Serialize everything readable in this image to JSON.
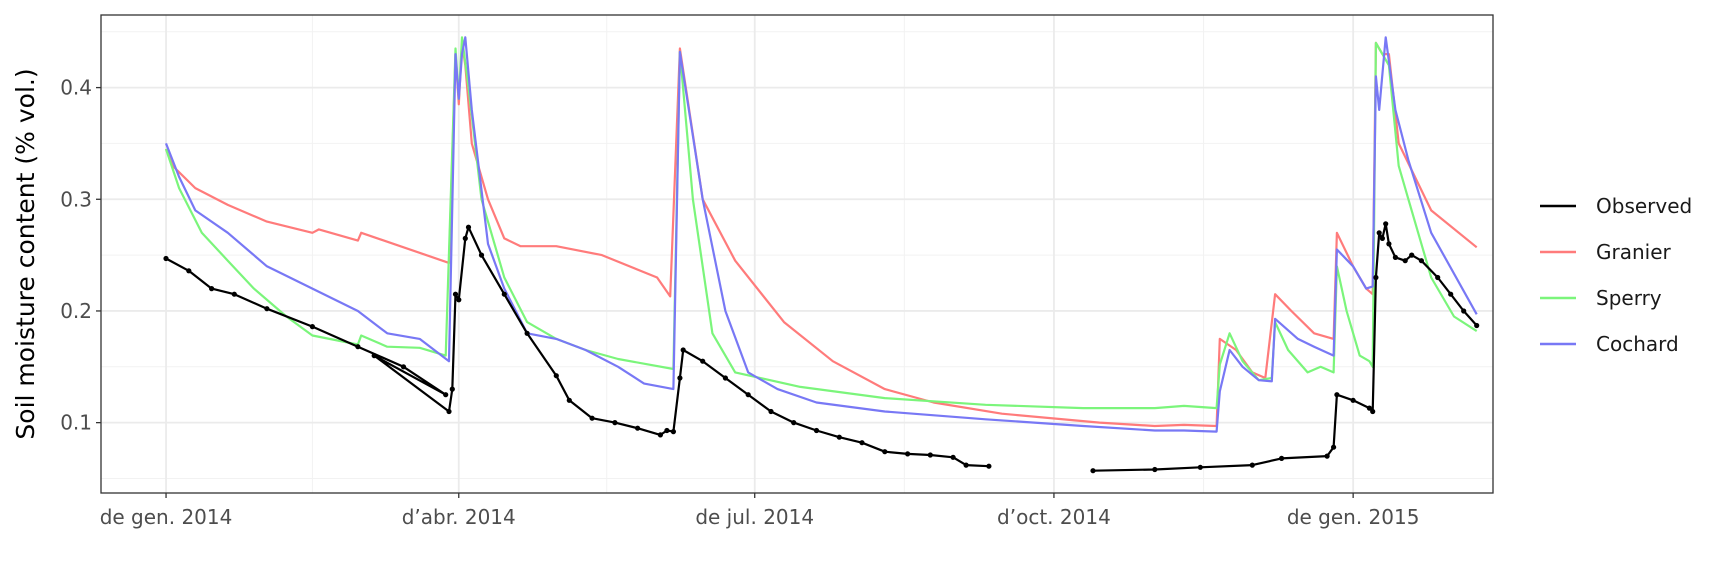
{
  "chart_data": {
    "type": "line",
    "title": "",
    "xlabel": "",
    "ylabel": "Soil moisture content (% vol.)",
    "x_ticks": [
      {
        "date": "2014-01-01",
        "label": "de gen. 2014"
      },
      {
        "date": "2014-04-01",
        "label": "d’abr. 2014"
      },
      {
        "date": "2014-07-01",
        "label": "de jul. 2014"
      },
      {
        "date": "2014-10-01",
        "label": "d’oct. 2014"
      },
      {
        "date": "2015-01-01",
        "label": "de gen. 2015"
      }
    ],
    "y_ticks": [
      {
        "value": 0.1,
        "label": "0.1"
      },
      {
        "value": 0.2,
        "label": "0.2"
      },
      {
        "value": 0.3,
        "label": "0.3"
      },
      {
        "value": 0.4,
        "label": "0.4"
      }
    ],
    "xlim": [
      "2013-12-12",
      "2015-02-13"
    ],
    "ylim": [
      0.037,
      0.465
    ],
    "grid": true,
    "legend_position": "right",
    "series": [
      {
        "name": "Observed",
        "color": "#000000",
        "markers": true,
        "segments": [
          [
            [
              "2014-01-01",
              0.247
            ],
            [
              "2014-01-08",
              0.236
            ],
            [
              "2014-01-15",
              0.22
            ],
            [
              "2014-01-22",
              0.215
            ],
            [
              "2014-02-01",
              0.202
            ],
            [
              "2014-02-15",
              0.186
            ],
            [
              "2014-03-01",
              0.168
            ],
            [
              "2014-03-15",
              0.15
            ],
            [
              "2014-03-28",
              0.125
            ],
            [
              "2014-03-06",
              0.16
            ],
            [
              "2014-03-29",
              0.11
            ],
            [
              "2014-03-30",
              0.13
            ],
            [
              "2014-03-31",
              0.215
            ],
            [
              "2014-04-01",
              0.21
            ],
            [
              "2014-04-03",
              0.265
            ],
            [
              "2014-04-04",
              0.275
            ],
            [
              "2014-04-08",
              0.25
            ],
            [
              "2014-04-15",
              0.215
            ],
            [
              "2014-04-22",
              0.18
            ],
            [
              "2014-05-01",
              0.142
            ],
            [
              "2014-05-05",
              0.12
            ],
            [
              "2014-05-12",
              0.104
            ],
            [
              "2014-05-19",
              0.1
            ],
            [
              "2014-05-26",
              0.095
            ],
            [
              "2014-06-02",
              0.089
            ],
            [
              "2014-06-04",
              0.093
            ],
            [
              "2014-06-06",
              0.092
            ],
            [
              "2014-06-08",
              0.14
            ],
            [
              "2014-06-09",
              0.165
            ],
            [
              "2014-06-15",
              0.155
            ],
            [
              "2014-06-22",
              0.14
            ],
            [
              "2014-06-29",
              0.125
            ],
            [
              "2014-07-06",
              0.11
            ],
            [
              "2014-07-13",
              0.1
            ],
            [
              "2014-07-20",
              0.093
            ],
            [
              "2014-07-27",
              0.087
            ],
            [
              "2014-08-03",
              0.082
            ],
            [
              "2014-08-10",
              0.074
            ],
            [
              "2014-08-17",
              0.072
            ],
            [
              "2014-08-24",
              0.071
            ],
            [
              "2014-08-31",
              0.069
            ],
            [
              "2014-09-04",
              0.062
            ],
            [
              "2014-09-11",
              0.061
            ]
          ],
          [
            [
              "2014-10-13",
              0.057
            ],
            [
              "2014-11-01",
              0.058
            ],
            [
              "2014-11-15",
              0.06
            ],
            [
              "2014-12-01",
              0.062
            ],
            [
              "2014-12-10",
              0.068
            ],
            [
              "2014-12-24",
              0.07
            ],
            [
              "2014-12-26",
              0.078
            ],
            [
              "2014-12-27",
              0.125
            ],
            [
              "2015-01-01",
              0.12
            ],
            [
              "2015-01-06",
              0.113
            ],
            [
              "2015-01-07",
              0.11
            ],
            [
              "2015-01-08",
              0.23
            ],
            [
              "2015-01-09",
              0.27
            ],
            [
              "2015-01-10",
              0.265
            ],
            [
              "2015-01-11",
              0.278
            ],
            [
              "2015-01-12",
              0.26
            ],
            [
              "2015-01-14",
              0.248
            ],
            [
              "2015-01-17",
              0.245
            ],
            [
              "2015-01-19",
              0.25
            ],
            [
              "2015-01-22",
              0.245
            ],
            [
              "2015-01-27",
              0.23
            ],
            [
              "2015-01-31",
              0.215
            ],
            [
              "2015-02-04",
              0.2
            ],
            [
              "2015-02-08",
              0.187
            ]
          ]
        ]
      },
      {
        "name": "Granier",
        "color": "#ff7b7b",
        "segments": [
          [
            [
              "2014-01-01",
              0.345
            ],
            [
              "2014-01-03",
              0.33
            ],
            [
              "2014-01-10",
              0.31
            ],
            [
              "2014-01-20",
              0.295
            ],
            [
              "2014-02-01",
              0.28
            ],
            [
              "2014-02-15",
              0.27
            ],
            [
              "2014-02-17",
              0.273
            ],
            [
              "2014-03-01",
              0.263
            ],
            [
              "2014-03-02",
              0.27
            ],
            [
              "2014-03-29",
              0.243
            ],
            [
              "2014-03-31",
              0.43
            ],
            [
              "2014-04-01",
              0.385
            ],
            [
              "2014-04-02",
              0.44
            ],
            [
              "2014-04-03",
              0.42
            ],
            [
              "2014-04-05",
              0.35
            ],
            [
              "2014-04-10",
              0.3
            ],
            [
              "2014-04-15",
              0.265
            ],
            [
              "2014-04-20",
              0.258
            ],
            [
              "2014-05-01",
              0.258
            ],
            [
              "2014-05-15",
              0.25
            ],
            [
              "2014-06-01",
              0.23
            ],
            [
              "2014-06-05",
              0.213
            ],
            [
              "2014-06-08",
              0.435
            ],
            [
              "2014-06-15",
              0.3
            ],
            [
              "2014-06-25",
              0.245
            ],
            [
              "2014-07-10",
              0.19
            ],
            [
              "2014-07-25",
              0.155
            ],
            [
              "2014-08-10",
              0.13
            ],
            [
              "2014-08-25",
              0.118
            ],
            [
              "2014-09-15",
              0.108
            ],
            [
              "2014-10-15",
              0.1
            ],
            [
              "2014-11-01",
              0.097
            ],
            [
              "2014-11-10",
              0.098
            ],
            [
              "2014-11-20",
              0.097
            ],
            [
              "2014-11-21",
              0.175
            ],
            [
              "2014-11-26",
              0.165
            ],
            [
              "2014-12-01",
              0.145
            ],
            [
              "2014-12-05",
              0.14
            ],
            [
              "2014-12-08",
              0.215
            ],
            [
              "2014-12-13",
              0.2
            ],
            [
              "2014-12-20",
              0.18
            ],
            [
              "2014-12-26",
              0.175
            ],
            [
              "2014-12-27",
              0.27
            ],
            [
              "2015-01-01",
              0.24
            ],
            [
              "2015-01-05",
              0.22
            ],
            [
              "2015-01-07",
              0.215
            ],
            [
              "2015-01-08",
              0.44
            ],
            [
              "2015-01-10",
              0.43
            ],
            [
              "2015-01-12",
              0.43
            ],
            [
              "2015-01-15",
              0.35
            ],
            [
              "2015-01-25",
              0.29
            ],
            [
              "2015-02-08",
              0.257
            ]
          ]
        ]
      },
      {
        "name": "Sperry",
        "color": "#7bf57b",
        "segments": [
          [
            [
              "2014-01-01",
              0.345
            ],
            [
              "2014-01-05",
              0.31
            ],
            [
              "2014-01-12",
              0.27
            ],
            [
              "2014-01-20",
              0.245
            ],
            [
              "2014-01-28",
              0.22
            ],
            [
              "2014-02-07",
              0.195
            ],
            [
              "2014-02-15",
              0.178
            ],
            [
              "2014-03-01",
              0.17
            ],
            [
              "2014-03-02",
              0.178
            ],
            [
              "2014-03-10",
              0.168
            ],
            [
              "2014-03-20",
              0.167
            ],
            [
              "2014-03-28",
              0.16
            ],
            [
              "2014-03-31",
              0.435
            ],
            [
              "2014-04-01",
              0.39
            ],
            [
              "2014-04-02",
              0.445
            ],
            [
              "2014-04-04",
              0.4
            ],
            [
              "2014-04-08",
              0.3
            ],
            [
              "2014-04-15",
              0.23
            ],
            [
              "2014-04-22",
              0.19
            ],
            [
              "2014-05-01",
              0.175
            ],
            [
              "2014-05-10",
              0.165
            ],
            [
              "2014-05-20",
              0.157
            ],
            [
              "2014-06-06",
              0.148
            ],
            [
              "2014-06-08",
              0.432
            ],
            [
              "2014-06-12",
              0.3
            ],
            [
              "2014-06-18",
              0.18
            ],
            [
              "2014-06-25",
              0.145
            ],
            [
              "2014-07-15",
              0.132
            ],
            [
              "2014-08-10",
              0.122
            ],
            [
              "2014-09-10",
              0.116
            ],
            [
              "2014-10-10",
              0.113
            ],
            [
              "2014-11-01",
              0.113
            ],
            [
              "2014-11-10",
              0.115
            ],
            [
              "2014-11-20",
              0.113
            ],
            [
              "2014-11-21",
              0.152
            ],
            [
              "2014-11-24",
              0.18
            ],
            [
              "2014-11-28",
              0.155
            ],
            [
              "2014-12-03",
              0.138
            ],
            [
              "2014-12-07",
              0.14
            ],
            [
              "2014-12-08",
              0.19
            ],
            [
              "2014-12-12",
              0.165
            ],
            [
              "2014-12-18",
              0.145
            ],
            [
              "2014-12-22",
              0.15
            ],
            [
              "2014-12-26",
              0.145
            ],
            [
              "2014-12-27",
              0.24
            ],
            [
              "2014-12-30",
              0.2
            ],
            [
              "2015-01-03",
              0.16
            ],
            [
              "2015-01-06",
              0.155
            ],
            [
              "2015-01-07",
              0.15
            ],
            [
              "2015-01-08",
              0.44
            ],
            [
              "2015-01-10",
              0.43
            ],
            [
              "2015-01-12",
              0.42
            ],
            [
              "2015-01-15",
              0.33
            ],
            [
              "2015-01-18",
              0.3
            ],
            [
              "2015-01-25",
              0.23
            ],
            [
              "2015-02-01",
              0.195
            ],
            [
              "2015-02-08",
              0.182
            ]
          ]
        ]
      },
      {
        "name": "Cochard",
        "color": "#7878f5",
        "segments": [
          [
            [
              "2014-01-01",
              0.35
            ],
            [
              "2014-01-05",
              0.32
            ],
            [
              "2014-01-10",
              0.29
            ],
            [
              "2014-01-20",
              0.27
            ],
            [
              "2014-02-01",
              0.24
            ],
            [
              "2014-02-15",
              0.22
            ],
            [
              "2014-03-01",
              0.2
            ],
            [
              "2014-03-10",
              0.18
            ],
            [
              "2014-03-20",
              0.175
            ],
            [
              "2014-03-29",
              0.155
            ],
            [
              "2014-03-31",
              0.43
            ],
            [
              "2014-04-01",
              0.39
            ],
            [
              "2014-04-02",
              0.43
            ],
            [
              "2014-04-03",
              0.445
            ],
            [
              "2014-04-05",
              0.38
            ],
            [
              "2014-04-10",
              0.26
            ],
            [
              "2014-04-15",
              0.22
            ],
            [
              "2014-04-22",
              0.18
            ],
            [
              "2014-05-01",
              0.175
            ],
            [
              "2014-05-10",
              0.165
            ],
            [
              "2014-05-20",
              0.15
            ],
            [
              "2014-05-28",
              0.135
            ],
            [
              "2014-06-06",
              0.13
            ],
            [
              "2014-06-08",
              0.432
            ],
            [
              "2014-06-15",
              0.3
            ],
            [
              "2014-06-22",
              0.2
            ],
            [
              "2014-06-29",
              0.145
            ],
            [
              "2014-07-08",
              0.13
            ],
            [
              "2014-07-20",
              0.118
            ],
            [
              "2014-08-10",
              0.11
            ],
            [
              "2014-09-10",
              0.103
            ],
            [
              "2014-10-10",
              0.097
            ],
            [
              "2014-11-01",
              0.093
            ],
            [
              "2014-11-10",
              0.093
            ],
            [
              "2014-11-20",
              0.092
            ],
            [
              "2014-11-21",
              0.128
            ],
            [
              "2014-11-24",
              0.165
            ],
            [
              "2014-11-28",
              0.15
            ],
            [
              "2014-12-03",
              0.138
            ],
            [
              "2014-12-07",
              0.137
            ],
            [
              "2014-12-08",
              0.193
            ],
            [
              "2014-12-15",
              0.175
            ],
            [
              "2014-12-20",
              0.168
            ],
            [
              "2014-12-26",
              0.16
            ],
            [
              "2014-12-27",
              0.255
            ],
            [
              "2015-01-01",
              0.24
            ],
            [
              "2015-01-05",
              0.22
            ],
            [
              "2015-01-07",
              0.222
            ],
            [
              "2015-01-08",
              0.41
            ],
            [
              "2015-01-09",
              0.38
            ],
            [
              "2015-01-11",
              0.445
            ],
            [
              "2015-01-14",
              0.38
            ],
            [
              "2015-01-18",
              0.335
            ],
            [
              "2015-01-25",
              0.27
            ],
            [
              "2015-02-08",
              0.197
            ]
          ]
        ]
      }
    ]
  }
}
